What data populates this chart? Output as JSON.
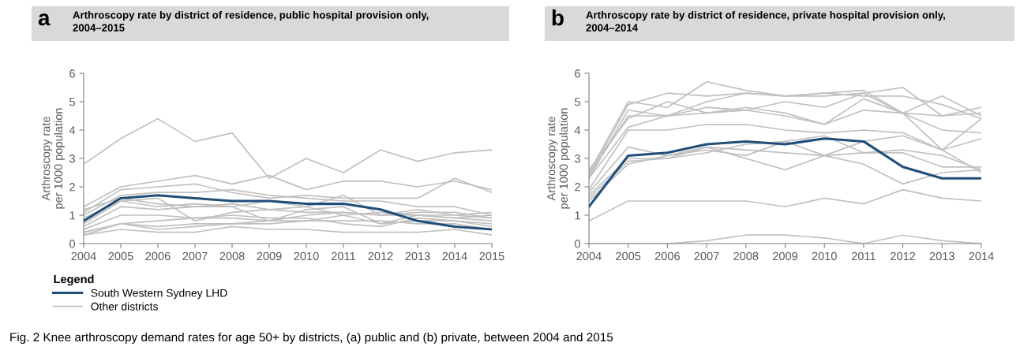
{
  "chart_data": [
    {
      "type": "line",
      "title": "Arthroscopy rate by district of residence, public hospital provision only,\n2004–2015",
      "ylabel": "Arthroscopy rate\nper 1000 population",
      "legend_title": "Legend",
      "legend": "bottom left",
      "grid": false,
      "annotations": [
        "a",
        "Fig. 2 Knee arthroscopy demand rates for age 50+ by districts, (a) public and (b) private, between 2004 and 2015"
      ],
      "x": [
        2004,
        2005,
        2006,
        2007,
        2008,
        2009,
        2010,
        2011,
        2012,
        2013,
        2014,
        2015
      ],
      "xlim": [
        2004,
        2015
      ],
      "xticks": [
        2004,
        2005,
        2006,
        2007,
        2008,
        2009,
        2010,
        2011,
        2012,
        2013,
        2014,
        2015
      ],
      "ylim": [
        0,
        6
      ],
      "yticks": [
        0,
        1,
        2,
        3,
        4,
        5,
        6
      ],
      "series": [
        {
          "name": "Other districts",
          "color": "#c0c0c0",
          "values": [
            2.8,
            3.7,
            4.4,
            3.6,
            3.9,
            2.3,
            3.0,
            2.5,
            3.3,
            2.9,
            3.2,
            3.3
          ]
        },
        {
          "color": "#c0c0c0",
          "values": [
            1.3,
            2.0,
            2.2,
            2.4,
            2.1,
            2.4,
            1.9,
            2.2,
            2.2,
            2.0,
            2.2,
            1.9
          ]
        },
        {
          "color": "#c0c0c0",
          "values": [
            1.1,
            1.9,
            2.0,
            2.1,
            1.8,
            1.6,
            1.7,
            1.6,
            1.6,
            1.6,
            2.3,
            1.8
          ]
        },
        {
          "color": "#c0c0c0",
          "values": [
            1.0,
            1.7,
            1.8,
            1.8,
            1.9,
            1.7,
            1.6,
            1.5,
            1.5,
            1.3,
            1.3,
            1.0
          ]
        },
        {
          "color": "#c0c0c0",
          "values": [
            0.9,
            1.5,
            1.3,
            1.4,
            1.3,
            1.5,
            1.3,
            1.7,
            1.0,
            1.2,
            1.0,
            1.1
          ]
        },
        {
          "color": "#c0c0c0",
          "values": [
            0.7,
            1.5,
            1.6,
            0.8,
            1.1,
            1.2,
            1.3,
            1.0,
            1.1,
            1.0,
            0.9,
            1.0
          ]
        },
        {
          "color": "#c0c0c0",
          "values": [
            0.6,
            1.3,
            1.2,
            1.3,
            1.4,
            1.2,
            1.1,
            1.1,
            1.0,
            1.1,
            1.1,
            0.9
          ]
        },
        {
          "color": "#c0c0c0",
          "values": [
            0.5,
            1.0,
            1.0,
            0.9,
            0.9,
            0.8,
            1.0,
            1.1,
            1.0,
            1.0,
            0.9,
            0.8
          ]
        },
        {
          "color": "#c0c0c0",
          "values": [
            0.4,
            0.7,
            0.8,
            0.9,
            1.0,
            0.9,
            0.9,
            0.7,
            0.6,
            0.9,
            0.8,
            0.7
          ]
        },
        {
          "color": "#c0c0c0",
          "values": [
            0.4,
            0.7,
            0.6,
            0.7,
            0.7,
            0.8,
            0.8,
            1.0,
            0.7,
            0.8,
            0.8,
            0.6
          ]
        },
        {
          "color": "#c0c0c0",
          "values": [
            0.3,
            0.7,
            0.5,
            0.6,
            0.7,
            0.7,
            0.8,
            0.8,
            0.8,
            0.7,
            0.7,
            0.5
          ]
        },
        {
          "color": "#c0c0c0",
          "values": [
            0.3,
            0.5,
            0.4,
            0.4,
            0.6,
            0.5,
            0.5,
            0.4,
            0.4,
            0.4,
            0.5,
            0.3
          ]
        },
        {
          "color": "#c0c0c0",
          "values": [
            1.2,
            1.6,
            1.4,
            1.3,
            1.3,
            0.8,
            1.2,
            1.3,
            0.7,
            1.0,
            1.0,
            0.9
          ]
        },
        {
          "name": "South Western Sydney LHD",
          "color": "#1f4e79",
          "values": [
            0.8,
            1.6,
            1.7,
            1.6,
            1.5,
            1.5,
            1.4,
            1.4,
            1.2,
            0.8,
            0.6,
            0.5
          ]
        }
      ]
    },
    {
      "type": "line",
      "title": "Arthroscopy rate by district of residence, private hospital provision only,\n2004–2014",
      "ylabel": "Arthroscopy rate\nper 1000 population",
      "grid": false,
      "annotations": [
        "b"
      ],
      "x": [
        2004,
        2005,
        2006,
        2007,
        2008,
        2009,
        2010,
        2011,
        2012,
        2013,
        2014
      ],
      "xlim": [
        2004,
        2014
      ],
      "xticks": [
        2004,
        2005,
        2006,
        2007,
        2008,
        2009,
        2010,
        2011,
        2012,
        2013,
        2014
      ],
      "ylim": [
        0,
        6
      ],
      "yticks": [
        0,
        1,
        2,
        3,
        4,
        5,
        6
      ],
      "series": [
        {
          "color": "#c0c0c0",
          "values": [
            2.5,
            5.0,
            4.8,
            5.7,
            5.4,
            5.2,
            5.2,
            5.3,
            5.5,
            4.5,
            4.8
          ]
        },
        {
          "color": "#c0c0c0",
          "values": [
            2.4,
            4.9,
            5.3,
            5.2,
            5.3,
            5.2,
            5.3,
            5.4,
            4.6,
            5.2,
            4.5
          ]
        },
        {
          "color": "#c0c0c0",
          "values": [
            2.3,
            4.7,
            4.5,
            5.0,
            5.3,
            5.2,
            5.3,
            5.2,
            5.2,
            4.9,
            4.4
          ]
        },
        {
          "color": "#c0c0c0",
          "values": [
            2.4,
            4.5,
            4.5,
            4.6,
            4.7,
            5.0,
            4.8,
            5.3,
            4.6,
            4.0,
            3.9
          ]
        },
        {
          "color": "#c0c0c0",
          "values": [
            2.6,
            4.4,
            5.0,
            4.6,
            4.8,
            4.6,
            4.2,
            5.1,
            4.6,
            3.3,
            4.4
          ]
        },
        {
          "color": "#c0c0c0",
          "values": [
            2.3,
            4.1,
            4.5,
            4.8,
            4.7,
            4.5,
            4.2,
            4.7,
            4.6,
            4.5,
            4.6
          ]
        },
        {
          "color": "#c0c0c0",
          "values": [
            1.9,
            4.0,
            4.0,
            4.2,
            4.2,
            4.0,
            3.9,
            4.0,
            3.9,
            3.3,
            3.7
          ]
        },
        {
          "color": "#c0c0c0",
          "values": [
            1.8,
            3.4,
            3.1,
            3.4,
            3.0,
            2.6,
            3.1,
            3.6,
            3.8,
            3.3,
            2.5
          ]
        },
        {
          "color": "#c0c0c0",
          "values": [
            1.6,
            2.9,
            3.0,
            3.2,
            3.5,
            3.6,
            3.8,
            3.2,
            3.3,
            3.1,
            2.6
          ]
        },
        {
          "color": "#c0c0c0",
          "values": [
            1.5,
            2.8,
            3.1,
            3.3,
            3.1,
            3.6,
            3.1,
            2.8,
            2.1,
            2.5,
            2.6
          ]
        },
        {
          "color": "#c0c0c0",
          "values": [
            1.7,
            3.0,
            3.0,
            3.4,
            3.3,
            3.2,
            3.1,
            3.2,
            3.2,
            2.7,
            2.7
          ]
        },
        {
          "color": "#c0c0c0",
          "values": [
            0.8,
            1.5,
            1.5,
            1.5,
            1.5,
            1.3,
            1.6,
            1.4,
            1.9,
            1.6,
            1.5
          ]
        },
        {
          "color": "#c0c0c0",
          "values": [
            0.0,
            0.0,
            0.0,
            0.1,
            0.3,
            0.3,
            0.2,
            0.0,
            0.3,
            0.1,
            0.0
          ]
        },
        {
          "color": "#1f4e79",
          "values": [
            1.3,
            3.1,
            3.2,
            3.5,
            3.6,
            3.5,
            3.7,
            3.6,
            2.7,
            2.3,
            2.3
          ]
        }
      ]
    }
  ]
}
